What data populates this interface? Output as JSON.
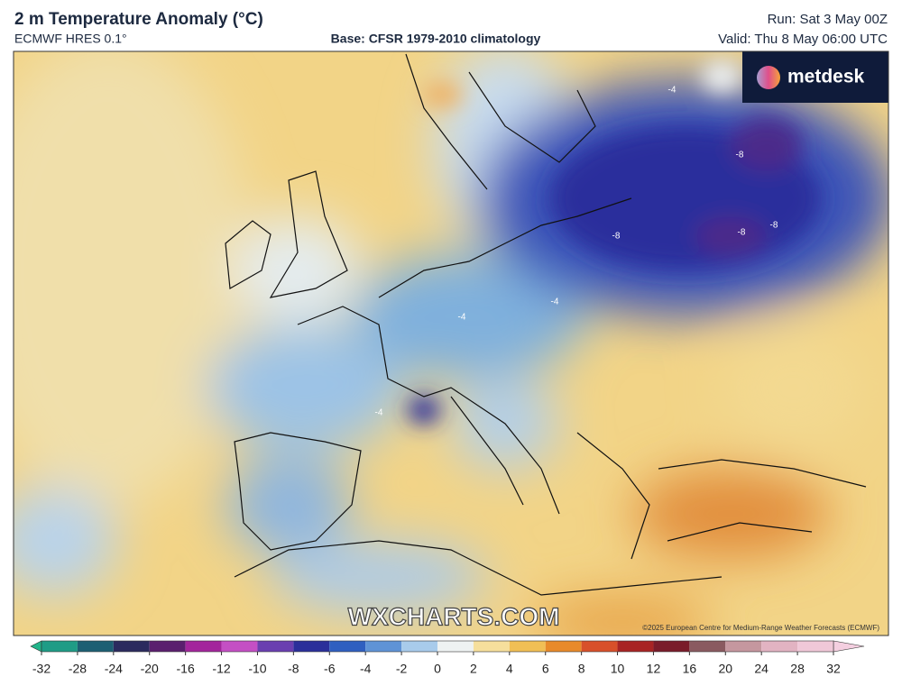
{
  "header": {
    "title": "2 m Temperature Anomaly (°C)",
    "model": "ECMWF HRES 0.1°",
    "base": "Base: CFSR 1979-2010 climatology",
    "run": "Run: Sat 3 May 00Z",
    "valid": "Valid: Thu 8 May 06:00 UTC"
  },
  "logo": "metdesk",
  "watermark": "WXCHARTS.COM",
  "copyright": "©2025 European Centre for Medium-Range Weather Forecasts (ECMWF)",
  "colorbar": {
    "ticks": [
      -32,
      -28,
      -24,
      -20,
      -16,
      -12,
      -10,
      -8,
      -6,
      -4,
      -2,
      0,
      2,
      4,
      6,
      8,
      10,
      12,
      16,
      20,
      24,
      28,
      32
    ],
    "colors": [
      "#1f9c86",
      "#1d5f73",
      "#2b2a5e",
      "#5a1f6e",
      "#a3259c",
      "#c44fc4",
      "#6a3fb0",
      "#2a2f9a",
      "#2f5fc0",
      "#5f93d6",
      "#a8cbeb",
      "#eef2f2",
      "#f6df9c",
      "#f1bf55",
      "#e88a2a",
      "#d8502a",
      "#a82424",
      "#7a1c2a",
      "#8a5a60",
      "#c5979f",
      "#e2b3c2",
      "#f0c8d8"
    ],
    "low_color": "#22b48a",
    "high_color": "#f4cfe0"
  },
  "contour_labels": [
    -8,
    -8,
    -8,
    -8,
    -4,
    -4,
    -4,
    -4
  ]
}
